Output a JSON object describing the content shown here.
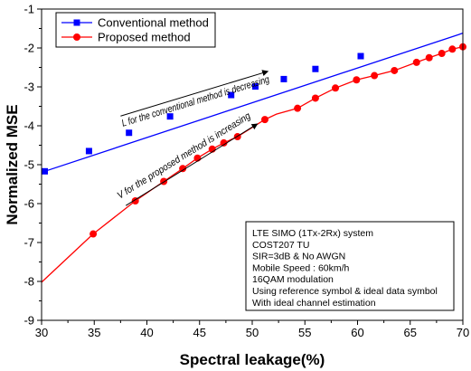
{
  "chart_data": {
    "type": "line",
    "xlabel": "Spectral leakage(%)",
    "ylabel": "Normalized MSE",
    "xlim": [
      30,
      70
    ],
    "ylim": [
      -9,
      -1
    ],
    "xticks": [
      "30",
      "35",
      "40",
      "45",
      "50",
      "55",
      "60",
      "65",
      "70"
    ],
    "yticks": [
      "-1",
      "-2",
      "-3",
      "-4",
      "-5",
      "-6",
      "-7",
      "-8",
      "-9"
    ],
    "grid": false,
    "legend_position": "top-left",
    "series": [
      {
        "name": "Conventional method",
        "color": "#0000ff",
        "marker": "square",
        "line_x": [
          30.3,
          70
        ],
        "line_y": [
          -5.17,
          -1.62
        ],
        "x": [
          30.3,
          34.5,
          38.3,
          42.2,
          48,
          50.3,
          53,
          56,
          60.3
        ],
        "y": [
          -5.17,
          -4.65,
          -4.18,
          -3.76,
          -3.21,
          -2.99,
          -2.8,
          -2.54,
          -2.21
        ]
      },
      {
        "name": "Proposed method",
        "color": "#ff0000",
        "marker": "circle",
        "line_x": [
          30,
          34.9,
          38.9,
          41.6,
          43.4,
          44.8,
          46.2,
          47.3,
          48.6,
          51.2,
          52.3,
          54.3,
          56,
          57.9,
          59.9,
          61.6,
          63.5,
          65.6,
          66.8,
          68,
          69,
          70
        ],
        "line_y": [
          -8.02,
          -6.78,
          -5.93,
          -5.43,
          -5.1,
          -4.83,
          -4.6,
          -4.44,
          -4.28,
          -3.84,
          -3.7,
          -3.55,
          -3.29,
          -3.03,
          -2.82,
          -2.71,
          -2.58,
          -2.37,
          -2.25,
          -2.14,
          -2.03,
          -1.97
        ],
        "x": [
          34.9,
          38.9,
          41.6,
          43.4,
          44.8,
          46.2,
          47.3,
          48.6,
          51.2,
          54.3,
          56,
          57.9,
          59.9,
          61.6,
          63.5,
          65.6,
          66.8,
          68,
          69,
          70
        ],
        "y": [
          -6.78,
          -5.93,
          -5.43,
          -5.1,
          -4.83,
          -4.6,
          -4.44,
          -4.28,
          -3.84,
          -3.55,
          -3.29,
          -3.03,
          -2.82,
          -2.71,
          -2.58,
          -2.37,
          -2.25,
          -2.14,
          -2.03,
          -1.97
        ]
      }
    ],
    "annotations": [
      {
        "text": "L for the conventional method is decreasing",
        "arrow_from": [
          37.5,
          -3.75
        ],
        "arrow_to": [
          51.5,
          -2.6
        ]
      },
      {
        "text": "V for the proposed method is increasing",
        "arrow_from": [
          38,
          -6.05
        ],
        "arrow_to": [
          50.5,
          -3.95
        ]
      }
    ],
    "info_box": [
      "LTE SIMO (1Tx-2Rx) system",
      "COST207 TU",
      "SIR=3dB & No AWGN",
      "Mobile Speed : 60km/h",
      "16QAM modulation",
      "Using reference symbol & ideal data symbol",
      "With ideal channel estimation"
    ]
  }
}
